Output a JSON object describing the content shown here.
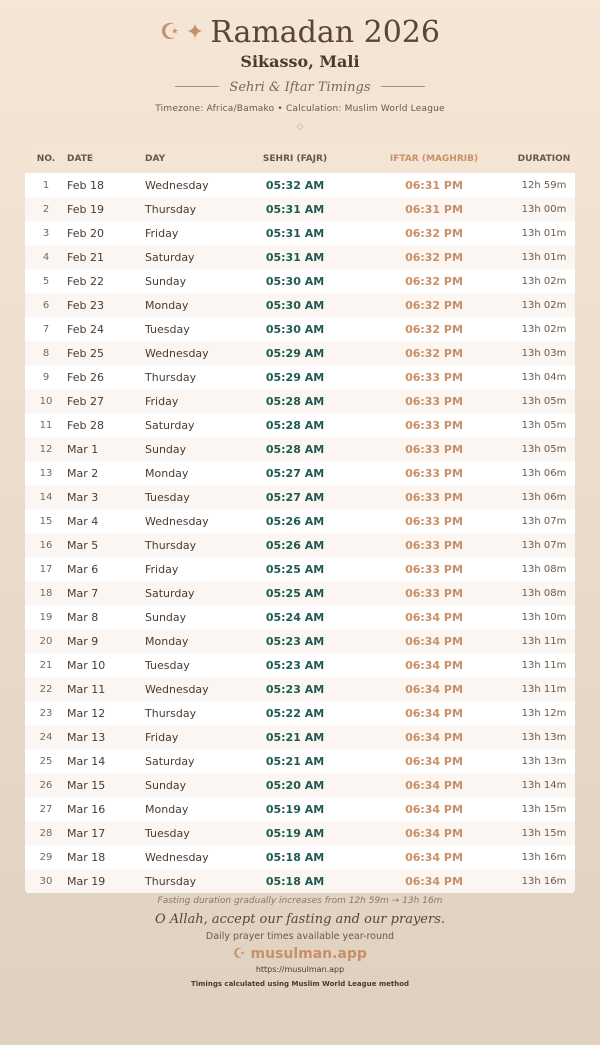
{
  "header": {
    "title": "Ramadan 2026",
    "city": "Sikasso, Mali",
    "subtitle": "Sehri & Iftar Timings",
    "meta": "Timezone: Africa/Bamako • Calculation: Muslim World League",
    "icons": [
      "crescent-icon",
      "star-icon",
      "diamond-icon"
    ]
  },
  "colors": {
    "sehri": "#1e5a52",
    "iftar": "#c99068",
    "accent": "#c99068"
  },
  "table": {
    "columns": [
      "NO.",
      "DATE",
      "DAY",
      "SEHRI (FAJR)",
      "IFTAR (MAGHRIB)",
      "DURATION"
    ],
    "rows": [
      [
        "1",
        "Feb 18",
        "Wednesday",
        "05:32 AM",
        "06:31 PM",
        "12h 59m"
      ],
      [
        "2",
        "Feb 19",
        "Thursday",
        "05:31 AM",
        "06:31 PM",
        "13h 00m"
      ],
      [
        "3",
        "Feb 20",
        "Friday",
        "05:31 AM",
        "06:32 PM",
        "13h 01m"
      ],
      [
        "4",
        "Feb 21",
        "Saturday",
        "05:31 AM",
        "06:32 PM",
        "13h 01m"
      ],
      [
        "5",
        "Feb 22",
        "Sunday",
        "05:30 AM",
        "06:32 PM",
        "13h 02m"
      ],
      [
        "6",
        "Feb 23",
        "Monday",
        "05:30 AM",
        "06:32 PM",
        "13h 02m"
      ],
      [
        "7",
        "Feb 24",
        "Tuesday",
        "05:30 AM",
        "06:32 PM",
        "13h 02m"
      ],
      [
        "8",
        "Feb 25",
        "Wednesday",
        "05:29 AM",
        "06:32 PM",
        "13h 03m"
      ],
      [
        "9",
        "Feb 26",
        "Thursday",
        "05:29 AM",
        "06:33 PM",
        "13h 04m"
      ],
      [
        "10",
        "Feb 27",
        "Friday",
        "05:28 AM",
        "06:33 PM",
        "13h 05m"
      ],
      [
        "11",
        "Feb 28",
        "Saturday",
        "05:28 AM",
        "06:33 PM",
        "13h 05m"
      ],
      [
        "12",
        "Mar 1",
        "Sunday",
        "05:28 AM",
        "06:33 PM",
        "13h 05m"
      ],
      [
        "13",
        "Mar 2",
        "Monday",
        "05:27 AM",
        "06:33 PM",
        "13h 06m"
      ],
      [
        "14",
        "Mar 3",
        "Tuesday",
        "05:27 AM",
        "06:33 PM",
        "13h 06m"
      ],
      [
        "15",
        "Mar 4",
        "Wednesday",
        "05:26 AM",
        "06:33 PM",
        "13h 07m"
      ],
      [
        "16",
        "Mar 5",
        "Thursday",
        "05:26 AM",
        "06:33 PM",
        "13h 07m"
      ],
      [
        "17",
        "Mar 6",
        "Friday",
        "05:25 AM",
        "06:33 PM",
        "13h 08m"
      ],
      [
        "18",
        "Mar 7",
        "Saturday",
        "05:25 AM",
        "06:33 PM",
        "13h 08m"
      ],
      [
        "19",
        "Mar 8",
        "Sunday",
        "05:24 AM",
        "06:34 PM",
        "13h 10m"
      ],
      [
        "20",
        "Mar 9",
        "Monday",
        "05:23 AM",
        "06:34 PM",
        "13h 11m"
      ],
      [
        "21",
        "Mar 10",
        "Tuesday",
        "05:23 AM",
        "06:34 PM",
        "13h 11m"
      ],
      [
        "22",
        "Mar 11",
        "Wednesday",
        "05:23 AM",
        "06:34 PM",
        "13h 11m"
      ],
      [
        "23",
        "Mar 12",
        "Thursday",
        "05:22 AM",
        "06:34 PM",
        "13h 12m"
      ],
      [
        "24",
        "Mar 13",
        "Friday",
        "05:21 AM",
        "06:34 PM",
        "13h 13m"
      ],
      [
        "25",
        "Mar 14",
        "Saturday",
        "05:21 AM",
        "06:34 PM",
        "13h 13m"
      ],
      [
        "26",
        "Mar 15",
        "Sunday",
        "05:20 AM",
        "06:34 PM",
        "13h 14m"
      ],
      [
        "27",
        "Mar 16",
        "Monday",
        "05:19 AM",
        "06:34 PM",
        "13h 15m"
      ],
      [
        "28",
        "Mar 17",
        "Tuesday",
        "05:19 AM",
        "06:34 PM",
        "13h 15m"
      ],
      [
        "29",
        "Mar 18",
        "Wednesday",
        "05:18 AM",
        "06:34 PM",
        "13h 16m"
      ],
      [
        "30",
        "Mar 19",
        "Thursday",
        "05:18 AM",
        "06:34 PM",
        "13h 16m"
      ]
    ]
  },
  "footer": {
    "note": "Fasting duration gradually increases from 12h 59m → 13h 16m",
    "dua": "O Allah, accept our fasting and our prayers.",
    "daily": "Daily prayer times available year-round",
    "brand": "musulman.app",
    "url": "https://musulman.app",
    "calc": "Timings calculated using Muslim World League method"
  }
}
